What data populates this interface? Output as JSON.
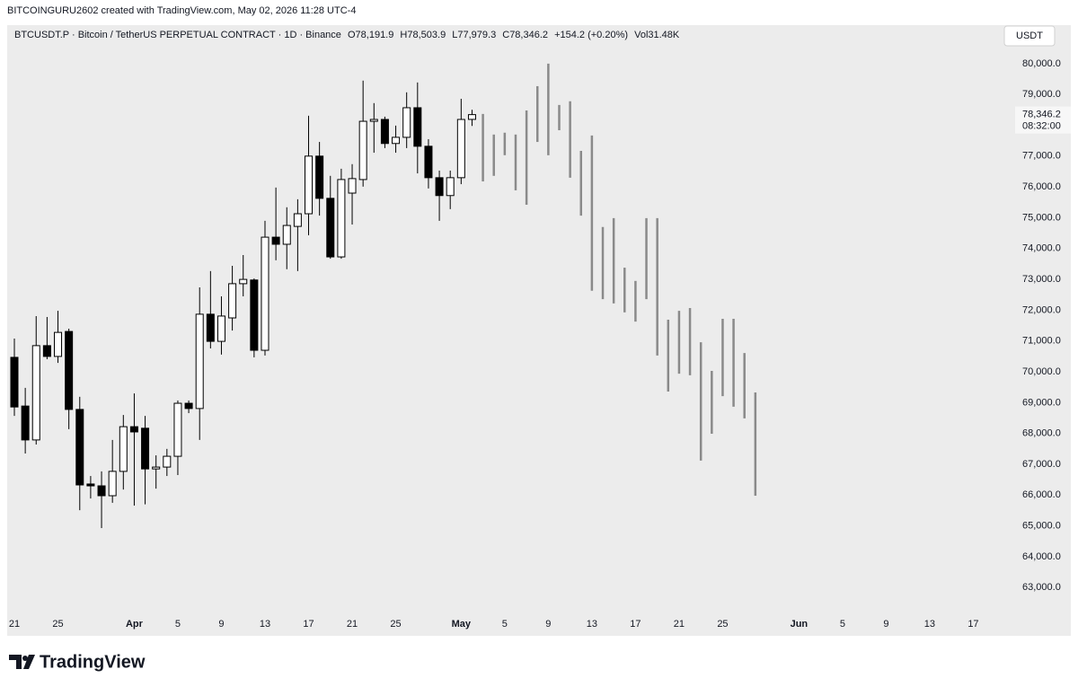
{
  "attribution": "BITCOINGURU2602 created with TradingView.com, May 02, 2026 11:28 UTC-4",
  "legend": {
    "symbol": "BTCUSDT.P · Bitcoin / TetherUS PERPETUAL CONTRACT · 1D · Binance",
    "open": "O78,191.9",
    "high": "H78,503.9",
    "low": "L77,979.3",
    "close": "C78,346.2",
    "change": "+154.2 (+0.20%)",
    "volume": "Vol31.48K"
  },
  "currency": "USDT",
  "brand": "TradingView",
  "chart_data": {
    "type": "candlestick",
    "grid": false,
    "ylim": [
      62250,
      81250
    ],
    "yticks": [
      {
        "value": 63000,
        "label": "63,000.0"
      },
      {
        "value": 64000,
        "label": "64,000.0"
      },
      {
        "value": 65000,
        "label": "65,000.0"
      },
      {
        "value": 66000,
        "label": "66,000.0"
      },
      {
        "value": 67000,
        "label": "67,000.0"
      },
      {
        "value": 68000,
        "label": "68,000.0"
      },
      {
        "value": 69000,
        "label": "69,000.0"
      },
      {
        "value": 70000,
        "label": "70,000.0"
      },
      {
        "value": 71000,
        "label": "71,000.0"
      },
      {
        "value": 72000,
        "label": "72,000.0"
      },
      {
        "value": 73000,
        "label": "73,000.0"
      },
      {
        "value": 74000,
        "label": "74,000.0"
      },
      {
        "value": 75000,
        "label": "75,000.0"
      },
      {
        "value": 76000,
        "label": "76,000.0"
      },
      {
        "value": 77000,
        "label": "77,000.0"
      },
      {
        "value": 78000,
        "label": "78,000.0"
      },
      {
        "value": 79000,
        "label": "79,000.0"
      },
      {
        "value": 80000,
        "label": "80,000.0"
      }
    ],
    "last_price": {
      "value": 78346.2,
      "label": "78,346.2"
    },
    "countdown": "08:32:00",
    "categories": [
      "21",
      null,
      null,
      null,
      "25",
      null,
      null,
      null,
      null,
      null,
      null,
      "Apr",
      null,
      null,
      null,
      "5",
      null,
      null,
      null,
      "9",
      null,
      null,
      null,
      "13",
      null,
      null,
      null,
      "17",
      null,
      null,
      null,
      "21",
      null,
      null,
      null,
      "25",
      null,
      null,
      null,
      null,
      null,
      "May",
      null,
      null,
      null,
      "5",
      null,
      null,
      null,
      "9",
      null,
      null,
      null,
      "13",
      null,
      null,
      null,
      "17",
      null,
      null,
      null,
      "21",
      null,
      null,
      null,
      "25",
      null,
      null,
      null,
      null,
      null,
      null,
      "Jun",
      null,
      null,
      null,
      "5",
      null,
      null,
      null,
      "9",
      null,
      null,
      null,
      "13",
      null,
      null,
      null,
      "17"
    ],
    "series": [
      {
        "type": "candlestick",
        "up_color": "#ffffff",
        "down_color": "#000000",
        "edge_color": "#000000",
        "open": [
          70470,
          68890,
          67790,
          70850,
          70500,
          71310,
          68780,
          66360,
          66300,
          65980,
          66770,
          68220,
          68170,
          66850,
          66910,
          67260,
          68980,
          68810,
          71870,
          70990,
          71750,
          72860,
          72980,
          70700,
          74370,
          74140,
          74720,
          75130,
          77000,
          75630,
          73730,
          75800,
          76240,
          78130,
          78190,
          77410,
          77610,
          78570,
          77320,
          76300,
          75720,
          76300,
          78191.9,
          null,
          null,
          null,
          null,
          null,
          null,
          null,
          null,
          null,
          null,
          null,
          null,
          null,
          null,
          null,
          null,
          null,
          null,
          null,
          null,
          null,
          null,
          null,
          null,
          null,
          null,
          null,
          null,
          null,
          null,
          null,
          null,
          null,
          null,
          null,
          null,
          null,
          null,
          null,
          null,
          null,
          null,
          null,
          null
        ],
        "high": [
          71080,
          69480,
          71810,
          71780,
          71980,
          71400,
          69190,
          66620,
          66770,
          67790,
          68600,
          69300,
          68570,
          67290,
          67500,
          69070,
          69070,
          72740,
          73270,
          72450,
          73440,
          73790,
          73030,
          74900,
          75980,
          75340,
          75600,
          78310,
          77460,
          76360,
          76590,
          76740,
          79450,
          78720,
          78280,
          77990,
          79070,
          79390,
          77550,
          76530,
          76530,
          78860,
          78503.9,
          null,
          null,
          null,
          null,
          null,
          null,
          null,
          null,
          null,
          null,
          null,
          null,
          null,
          null,
          null,
          null,
          null,
          null,
          null,
          null,
          null,
          null,
          null,
          null,
          null,
          null,
          null,
          null,
          null,
          null,
          null,
          null,
          null,
          null,
          null,
          null,
          null,
          null,
          null,
          null,
          null,
          null,
          null,
          null
        ],
        "low": [
          68570,
          67350,
          67640,
          70410,
          70290,
          68140,
          65510,
          65890,
          64930,
          65750,
          66180,
          65660,
          65700,
          66210,
          66620,
          66650,
          68660,
          67790,
          70760,
          70560,
          71340,
          72450,
          70470,
          70530,
          73620,
          73330,
          73270,
          74430,
          75070,
          73670,
          73670,
          74780,
          76010,
          77110,
          77260,
          77110,
          77260,
          76440,
          75950,
          74900,
          75280,
          76090,
          77979.3,
          null,
          null,
          null,
          null,
          null,
          null,
          null,
          null,
          null,
          null,
          null,
          null,
          null,
          null,
          null,
          null,
          null,
          null,
          null,
          null,
          null,
          null,
          null,
          null,
          null,
          null,
          null,
          null,
          null,
          null,
          null,
          null,
          null,
          null,
          null,
          null,
          null,
          null,
          null,
          null,
          null,
          null,
          null,
          null
        ],
        "close": [
          68860,
          67790,
          70850,
          70500,
          71280,
          68780,
          66330,
          66300,
          65980,
          66770,
          68220,
          68050,
          66850,
          66910,
          67260,
          68980,
          68810,
          71870,
          70990,
          71810,
          72860,
          73000,
          70700,
          74370,
          74140,
          74750,
          75130,
          77000,
          75630,
          73730,
          76240,
          76270,
          78130,
          78190,
          77410,
          77610,
          78570,
          77320,
          76300,
          75720,
          76300,
          78190,
          78346.2,
          null,
          null,
          null,
          null,
          null,
          null,
          null,
          null,
          null,
          null,
          null,
          null,
          null,
          null,
          null,
          null,
          null,
          null,
          null,
          null,
          null,
          null,
          null,
          null,
          null,
          null,
          null,
          null,
          null,
          null,
          null,
          null,
          null,
          null,
          null,
          null,
          null,
          null,
          null,
          null,
          null,
          null,
          null,
          null
        ]
      },
      {
        "type": "range_bar",
        "color": "#8a8a8a",
        "high": [
          null,
          null,
          null,
          null,
          null,
          null,
          null,
          null,
          null,
          null,
          null,
          null,
          null,
          null,
          null,
          null,
          null,
          null,
          null,
          null,
          null,
          null,
          null,
          null,
          null,
          null,
          null,
          null,
          null,
          null,
          null,
          null,
          null,
          null,
          null,
          null,
          null,
          null,
          null,
          null,
          null,
          null,
          null,
          78370,
          77700,
          77760,
          77700,
          78480,
          79270,
          80000,
          78660,
          78780,
          77170,
          77670,
          74700,
          74990,
          73380,
          72950,
          74990,
          74990,
          71690,
          71980,
          72070,
          70960,
          70030,
          71720,
          71720,
          70610,
          69330,
          null,
          null,
          null,
          null,
          null,
          null,
          null,
          null,
          null,
          null,
          null,
          null,
          null,
          null,
          null,
          null,
          null,
          null,
          null,
          null
        ],
        "low": [
          null,
          null,
          null,
          null,
          null,
          null,
          null,
          null,
          null,
          null,
          null,
          null,
          null,
          null,
          null,
          null,
          null,
          null,
          null,
          null,
          null,
          null,
          null,
          null,
          null,
          null,
          null,
          null,
          null,
          null,
          null,
          null,
          null,
          null,
          null,
          null,
          null,
          null,
          null,
          null,
          null,
          null,
          null,
          76180,
          76360,
          77030,
          75890,
          75420,
          77460,
          77030,
          77840,
          76300,
          75070,
          72630,
          72360,
          72220,
          71930,
          71630,
          72360,
          70530,
          69360,
          69940,
          69890,
          67120,
          67990,
          69210,
          68870,
          68490,
          65980,
          null,
          null,
          null,
          null,
          null,
          null,
          null,
          null,
          null,
          null,
          null,
          null,
          null,
          null,
          null,
          null,
          null,
          null,
          null,
          null
        ]
      }
    ]
  }
}
